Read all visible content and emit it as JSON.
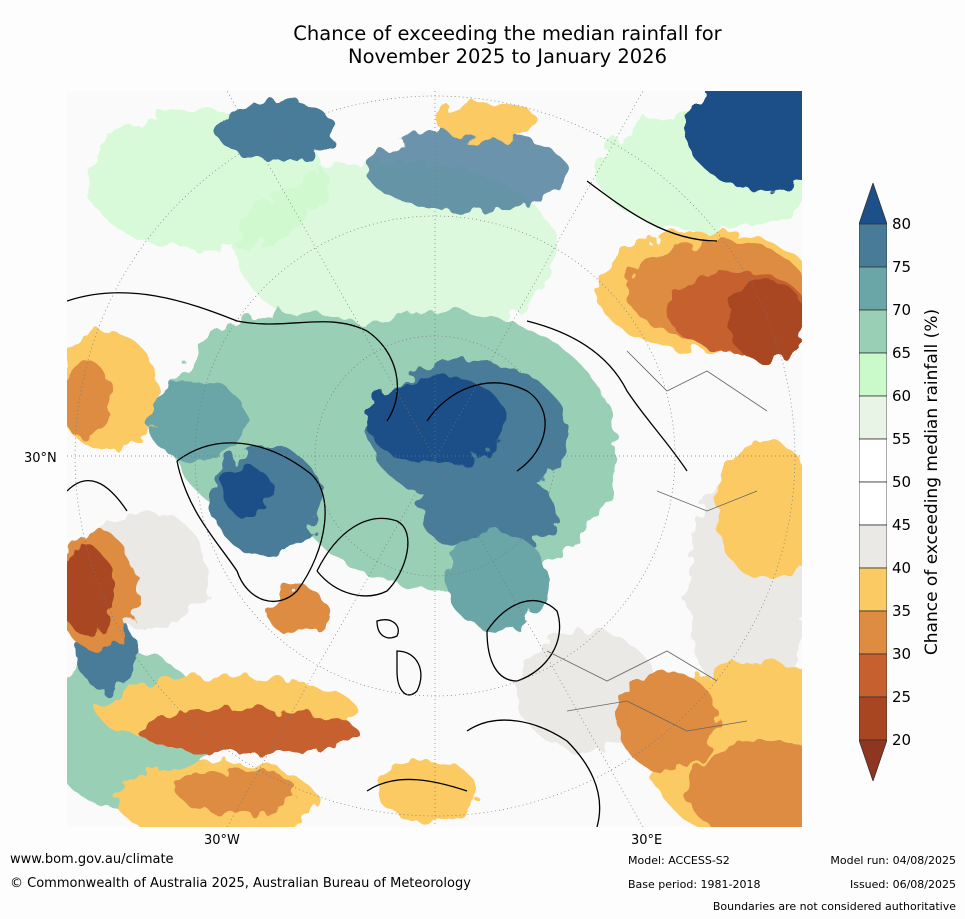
{
  "title": {
    "line1": "Chance of exceeding the median rainfall for",
    "line2": "November 2025 to January 2026"
  },
  "map": {
    "lat_label": "30°N",
    "lon_labels": [
      "30°W",
      "30°E"
    ]
  },
  "colorbar": {
    "label": "Chance of exceeding median rainfall (%)",
    "ticks": [
      "20",
      "25",
      "30",
      "35",
      "40",
      "45",
      "50",
      "55",
      "60",
      "65",
      "70",
      "75",
      "80"
    ],
    "colors": {
      "below_20": "#8f3620",
      "20_25": "#a84622",
      "25_30": "#c6602e",
      "30_35": "#dd8c42",
      "35_40": "#fbca63",
      "40_45": "#ebe9e5",
      "45_50": "#ffffff",
      "50_55": "#ffffff",
      "55_60": "#e8f4e6",
      "60_65": "#caf9ca",
      "65_70": "#99cfb4",
      "70_75": "#6aa5a8",
      "75_80": "#487b98",
      "above_80": "#1d5088"
    }
  },
  "footer": {
    "website": "www.bom.gov.au/climate",
    "copyright": "© Commonwealth of Australia 2025, Australian Bureau of Meteorology",
    "model": "Model: ACCESS-S2",
    "base_period": "Base period: 1981-2018",
    "model_run": "Model run: 04/08/2025",
    "issued": "Issued: 06/08/2025",
    "disclaimer": "Boundaries are not considered authoritative"
  }
}
